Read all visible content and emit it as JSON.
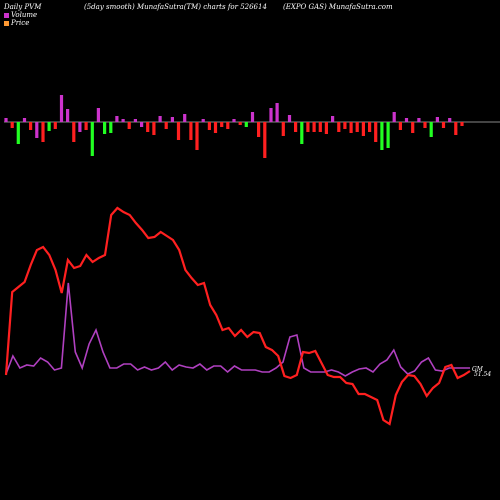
{
  "header": {
    "left": "Daily PVM",
    "mid": "(5day smooth) MunafaSutra(TM) charts for 526614",
    "right": "(EXPO GAS) MunafaSutra.com"
  },
  "legend": [
    {
      "label": "Volume",
      "color": "#cc33cc"
    },
    {
      "label": "Price",
      "color": "#ff9933"
    }
  ],
  "colors": {
    "price_line": "#ff2020",
    "pvm_line": "#b040c0",
    "up_bar": "#cc33cc",
    "down_bar": "#ff2020",
    "green_bar": "#22ff22",
    "zero_line": "#888888"
  },
  "end_labels": {
    "pvm": "GM",
    "price": "51.54"
  },
  "chart_data": {
    "type": "line",
    "bars": [
      {
        "v": 4,
        "c": "m"
      },
      {
        "v": -6,
        "c": "r"
      },
      {
        "v": -22,
        "c": "g"
      },
      {
        "v": 4,
        "c": "m"
      },
      {
        "v": -8,
        "c": "r"
      },
      {
        "v": -16,
        "c": "m"
      },
      {
        "v": -20,
        "c": "r"
      },
      {
        "v": -9,
        "c": "g"
      },
      {
        "v": -7,
        "c": "r"
      },
      {
        "v": 27,
        "c": "m"
      },
      {
        "v": 13,
        "c": "m"
      },
      {
        "v": -20,
        "c": "r"
      },
      {
        "v": -10,
        "c": "m"
      },
      {
        "v": -8,
        "c": "r"
      },
      {
        "v": -34,
        "c": "g"
      },
      {
        "v": 14,
        "c": "m"
      },
      {
        "v": -12,
        "c": "g"
      },
      {
        "v": -11,
        "c": "g"
      },
      {
        "v": 6,
        "c": "m"
      },
      {
        "v": 3,
        "c": "m"
      },
      {
        "v": -7,
        "c": "r"
      },
      {
        "v": 3,
        "c": "m"
      },
      {
        "v": -5,
        "c": "m"
      },
      {
        "v": -10,
        "c": "r"
      },
      {
        "v": -13,
        "c": "r"
      },
      {
        "v": 6,
        "c": "m"
      },
      {
        "v": -7,
        "c": "r"
      },
      {
        "v": 5,
        "c": "m"
      },
      {
        "v": -18,
        "c": "r"
      },
      {
        "v": 8,
        "c": "m"
      },
      {
        "v": -18,
        "c": "r"
      },
      {
        "v": -28,
        "c": "r"
      },
      {
        "v": 3,
        "c": "m"
      },
      {
        "v": -8,
        "c": "r"
      },
      {
        "v": -11,
        "c": "r"
      },
      {
        "v": -5,
        "c": "r"
      },
      {
        "v": -7,
        "c": "r"
      },
      {
        "v": 3,
        "c": "m"
      },
      {
        "v": -3,
        "c": "r"
      },
      {
        "v": -5,
        "c": "g"
      },
      {
        "v": 10,
        "c": "m"
      },
      {
        "v": -15,
        "c": "r"
      },
      {
        "v": -36,
        "c": "r"
      },
      {
        "v": 14,
        "c": "m"
      },
      {
        "v": 19,
        "c": "m"
      },
      {
        "v": -14,
        "c": "r"
      },
      {
        "v": 7,
        "c": "m"
      },
      {
        "v": -10,
        "c": "r"
      },
      {
        "v": -22,
        "c": "g"
      },
      {
        "v": -10,
        "c": "r"
      },
      {
        "v": -10,
        "c": "r"
      },
      {
        "v": -10,
        "c": "r"
      },
      {
        "v": -12,
        "c": "r"
      },
      {
        "v": 6,
        "c": "m"
      },
      {
        "v": -10,
        "c": "r"
      },
      {
        "v": -7,
        "c": "r"
      },
      {
        "v": -11,
        "c": "r"
      },
      {
        "v": -10,
        "c": "r"
      },
      {
        "v": -14,
        "c": "r"
      },
      {
        "v": -10,
        "c": "r"
      },
      {
        "v": -20,
        "c": "r"
      },
      {
        "v": -28,
        "c": "g"
      },
      {
        "v": -26,
        "c": "g"
      },
      {
        "v": 10,
        "c": "m"
      },
      {
        "v": -8,
        "c": "r"
      },
      {
        "v": 4,
        "c": "m"
      },
      {
        "v": -11,
        "c": "r"
      },
      {
        "v": 4,
        "c": "m"
      },
      {
        "v": -6,
        "c": "r"
      },
      {
        "v": -15,
        "c": "g"
      },
      {
        "v": 5,
        "c": "m"
      },
      {
        "v": -6,
        "c": "r"
      },
      {
        "v": 4,
        "c": "m"
      },
      {
        "v": -13,
        "c": "r"
      },
      {
        "v": -4,
        "c": "r"
      }
    ],
    "price": [
      375,
      292,
      287,
      282,
      265,
      250,
      247,
      255,
      270,
      293,
      260,
      268,
      266,
      255,
      262,
      258,
      255,
      215,
      208,
      212,
      215,
      223,
      230,
      238,
      237,
      232,
      236,
      240,
      250,
      270,
      278,
      285,
      283,
      305,
      315,
      330,
      328,
      336,
      330,
      337,
      332,
      333,
      347,
      350,
      356,
      376,
      378,
      375,
      352,
      353,
      351,
      363,
      375,
      377,
      377,
      383,
      384,
      394,
      394,
      397,
      400,
      420,
      424,
      395,
      382,
      375,
      376,
      384,
      396,
      388,
      383,
      367,
      365,
      378,
      375,
      371
    ],
    "pvm": [
      374,
      356,
      368,
      365,
      366,
      358,
      362,
      370,
      368,
      283,
      352,
      368,
      344,
      330,
      352,
      368,
      368,
      364,
      364,
      370,
      367,
      370,
      368,
      362,
      370,
      365,
      367,
      368,
      364,
      370,
      366,
      366,
      372,
      366,
      370,
      370,
      370,
      372,
      372,
      368,
      362,
      337,
      335,
      368,
      372,
      372,
      372,
      370,
      372,
      376,
      372,
      369,
      368,
      372,
      364,
      360,
      350,
      367,
      374,
      371,
      362,
      358,
      370,
      371,
      368,
      368,
      368,
      368
    ]
  }
}
